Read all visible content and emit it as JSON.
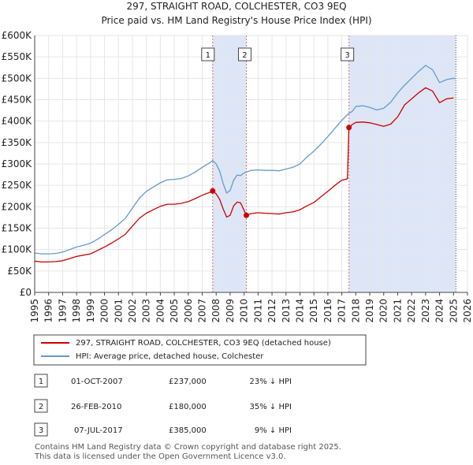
{
  "chart_data": {
    "type": "line",
    "title": "297, STRAIGHT ROAD, COLCHESTER, CO3 9EQ",
    "subtitle": "Price paid vs. HM Land Registry's House Price Index (HPI)",
    "xlim": [
      1995,
      2026
    ],
    "ylim": [
      0,
      600000
    ],
    "x_ticks": [
      "1995",
      "1996",
      "1997",
      "1998",
      "1999",
      "2000",
      "2001",
      "2002",
      "2003",
      "2004",
      "2005",
      "2006",
      "2007",
      "2008",
      "2009",
      "2010",
      "2011",
      "2012",
      "2013",
      "2014",
      "2015",
      "2016",
      "2017",
      "2018",
      "2019",
      "2020",
      "2021",
      "2022",
      "2023",
      "2024",
      "2025",
      "2026"
    ],
    "y_ticks": [
      {
        "value": 0,
        "label": "£0"
      },
      {
        "value": 50000,
        "label": "£50K"
      },
      {
        "value": 100000,
        "label": "£100K"
      },
      {
        "value": 150000,
        "label": "£150K"
      },
      {
        "value": 200000,
        "label": "£200K"
      },
      {
        "value": 250000,
        "label": "£250K"
      },
      {
        "value": 300000,
        "label": "£300K"
      },
      {
        "value": 350000,
        "label": "£350K"
      },
      {
        "value": 400000,
        "label": "£400K"
      },
      {
        "value": 450000,
        "label": "£450K"
      },
      {
        "value": 500000,
        "label": "£500K"
      },
      {
        "value": 550000,
        "label": "£550K"
      },
      {
        "value": 600000,
        "label": "£600K"
      }
    ],
    "future_from": 2025.17,
    "shaded_spans": [
      [
        2007.75,
        2010.16
      ],
      [
        2017.51,
        2025.17
      ]
    ],
    "series": [
      {
        "name": "297, STRAIGHT ROAD, COLCHESTER, CO3 9EQ (detached house)",
        "color": "#cc0000",
        "x": [
          1995,
          1995.5,
          1996,
          1996.5,
          1997,
          1997.5,
          1998,
          1998.5,
          1999,
          1999.5,
          2000,
          2000.5,
          2001,
          2001.5,
          2002,
          2002.5,
          2003,
          2003.5,
          2004,
          2004.5,
          2005,
          2005.5,
          2006,
          2006.5,
          2007,
          2007.5,
          2007.75,
          2008,
          2008.25,
          2008.5,
          2008.75,
          2009,
          2009.25,
          2009.5,
          2009.75,
          2010.16,
          2010.5,
          2011,
          2011.5,
          2012,
          2012.5,
          2013,
          2013.5,
          2014,
          2014.5,
          2015,
          2015.5,
          2016,
          2016.5,
          2017,
          2017.4,
          2017.51,
          2017.75,
          2018,
          2018.5,
          2019,
          2019.5,
          2020,
          2020.5,
          2021,
          2021.5,
          2022,
          2022.5,
          2023,
          2023.5,
          2024,
          2024.5,
          2025
        ],
        "y": [
          73000,
          71000,
          71000,
          72000,
          74000,
          79000,
          84000,
          87000,
          90000,
          98000,
          106000,
          115000,
          125000,
          136000,
          155000,
          173000,
          185000,
          193000,
          201000,
          206000,
          206000,
          208000,
          212000,
          219000,
          227000,
          233000,
          237000,
          230000,
          217000,
          195000,
          176000,
          180000,
          202000,
          211000,
          209000,
          180000,
          184000,
          186000,
          185000,
          184000,
          183000,
          186000,
          188000,
          193000,
          202000,
          210000,
          223000,
          236000,
          250000,
          262000,
          265000,
          385000,
          392000,
          397000,
          398000,
          396000,
          392000,
          388000,
          393000,
          410000,
          438000,
          452000,
          466000,
          478000,
          470000,
          443000,
          452000,
          454000
        ]
      },
      {
        "name": "HPI: Average price, detached house, Colchester",
        "color": "#6699cc",
        "x": [
          1995,
          1995.5,
          1996,
          1996.5,
          1997,
          1997.5,
          1998,
          1998.5,
          1999,
          1999.5,
          2000,
          2000.5,
          2001,
          2001.5,
          2002,
          2002.5,
          2003,
          2003.5,
          2004,
          2004.5,
          2005,
          2005.5,
          2006,
          2006.5,
          2007,
          2007.5,
          2007.75,
          2008,
          2008.25,
          2008.5,
          2008.75,
          2009,
          2009.25,
          2009.5,
          2009.75,
          2010,
          2010.5,
          2011,
          2011.5,
          2012,
          2012.5,
          2013,
          2013.5,
          2014,
          2014.5,
          2015,
          2015.5,
          2016,
          2016.5,
          2017,
          2017.5,
          2017.75,
          2018,
          2018.5,
          2019,
          2019.5,
          2020,
          2020.5,
          2021,
          2021.5,
          2022,
          2022.5,
          2023,
          2023.5,
          2024,
          2024.5,
          2025,
          2025.17
        ],
        "y": [
          92000,
          90000,
          90000,
          91000,
          94000,
          100000,
          106000,
          110000,
          115000,
          124000,
          135000,
          146000,
          159000,
          173000,
          197000,
          220000,
          236000,
          246000,
          256000,
          263000,
          264000,
          266000,
          272000,
          281000,
          292000,
          302000,
          308000,
          300000,
          283000,
          254000,
          232000,
          238000,
          262000,
          274000,
          273000,
          279000,
          285000,
          286000,
          285000,
          285000,
          284000,
          288000,
          292000,
          300000,
          316000,
          330000,
          346000,
          364000,
          383000,
          402000,
          418000,
          423000,
          434000,
          436000,
          432000,
          426000,
          430000,
          444000,
          466000,
          484000,
          500000,
          516000,
          530000,
          520000,
          490000,
          497000,
          500000,
          499000
        ]
      }
    ],
    "sales": [
      {
        "label": "1",
        "date": "01-OCT-2007",
        "x": 2007.75,
        "price": 237000,
        "price_label": "£237,000",
        "hpi_diff": "23% ↓ HPI"
      },
      {
        "label": "2",
        "date": "26-FEB-2010",
        "x": 2010.16,
        "price": 180000,
        "price_label": "£180,000",
        "hpi_diff": "35% ↓ HPI"
      },
      {
        "label": "3",
        "date": "07-JUL-2017",
        "x": 2017.51,
        "price": 385000,
        "price_label": "£385,000",
        "hpi_diff": "9% ↓ HPI"
      }
    ],
    "footer": [
      "Contains HM Land Registry data © Crown copyright and database right 2025.",
      "This data is licensed under the Open Government Licence v3.0."
    ]
  },
  "colors": {
    "price_line": "#cc0000",
    "hpi_line": "#6699cc",
    "shade": "#dce6f7",
    "grid": "#e6e6e6",
    "vline": "#e07070"
  }
}
